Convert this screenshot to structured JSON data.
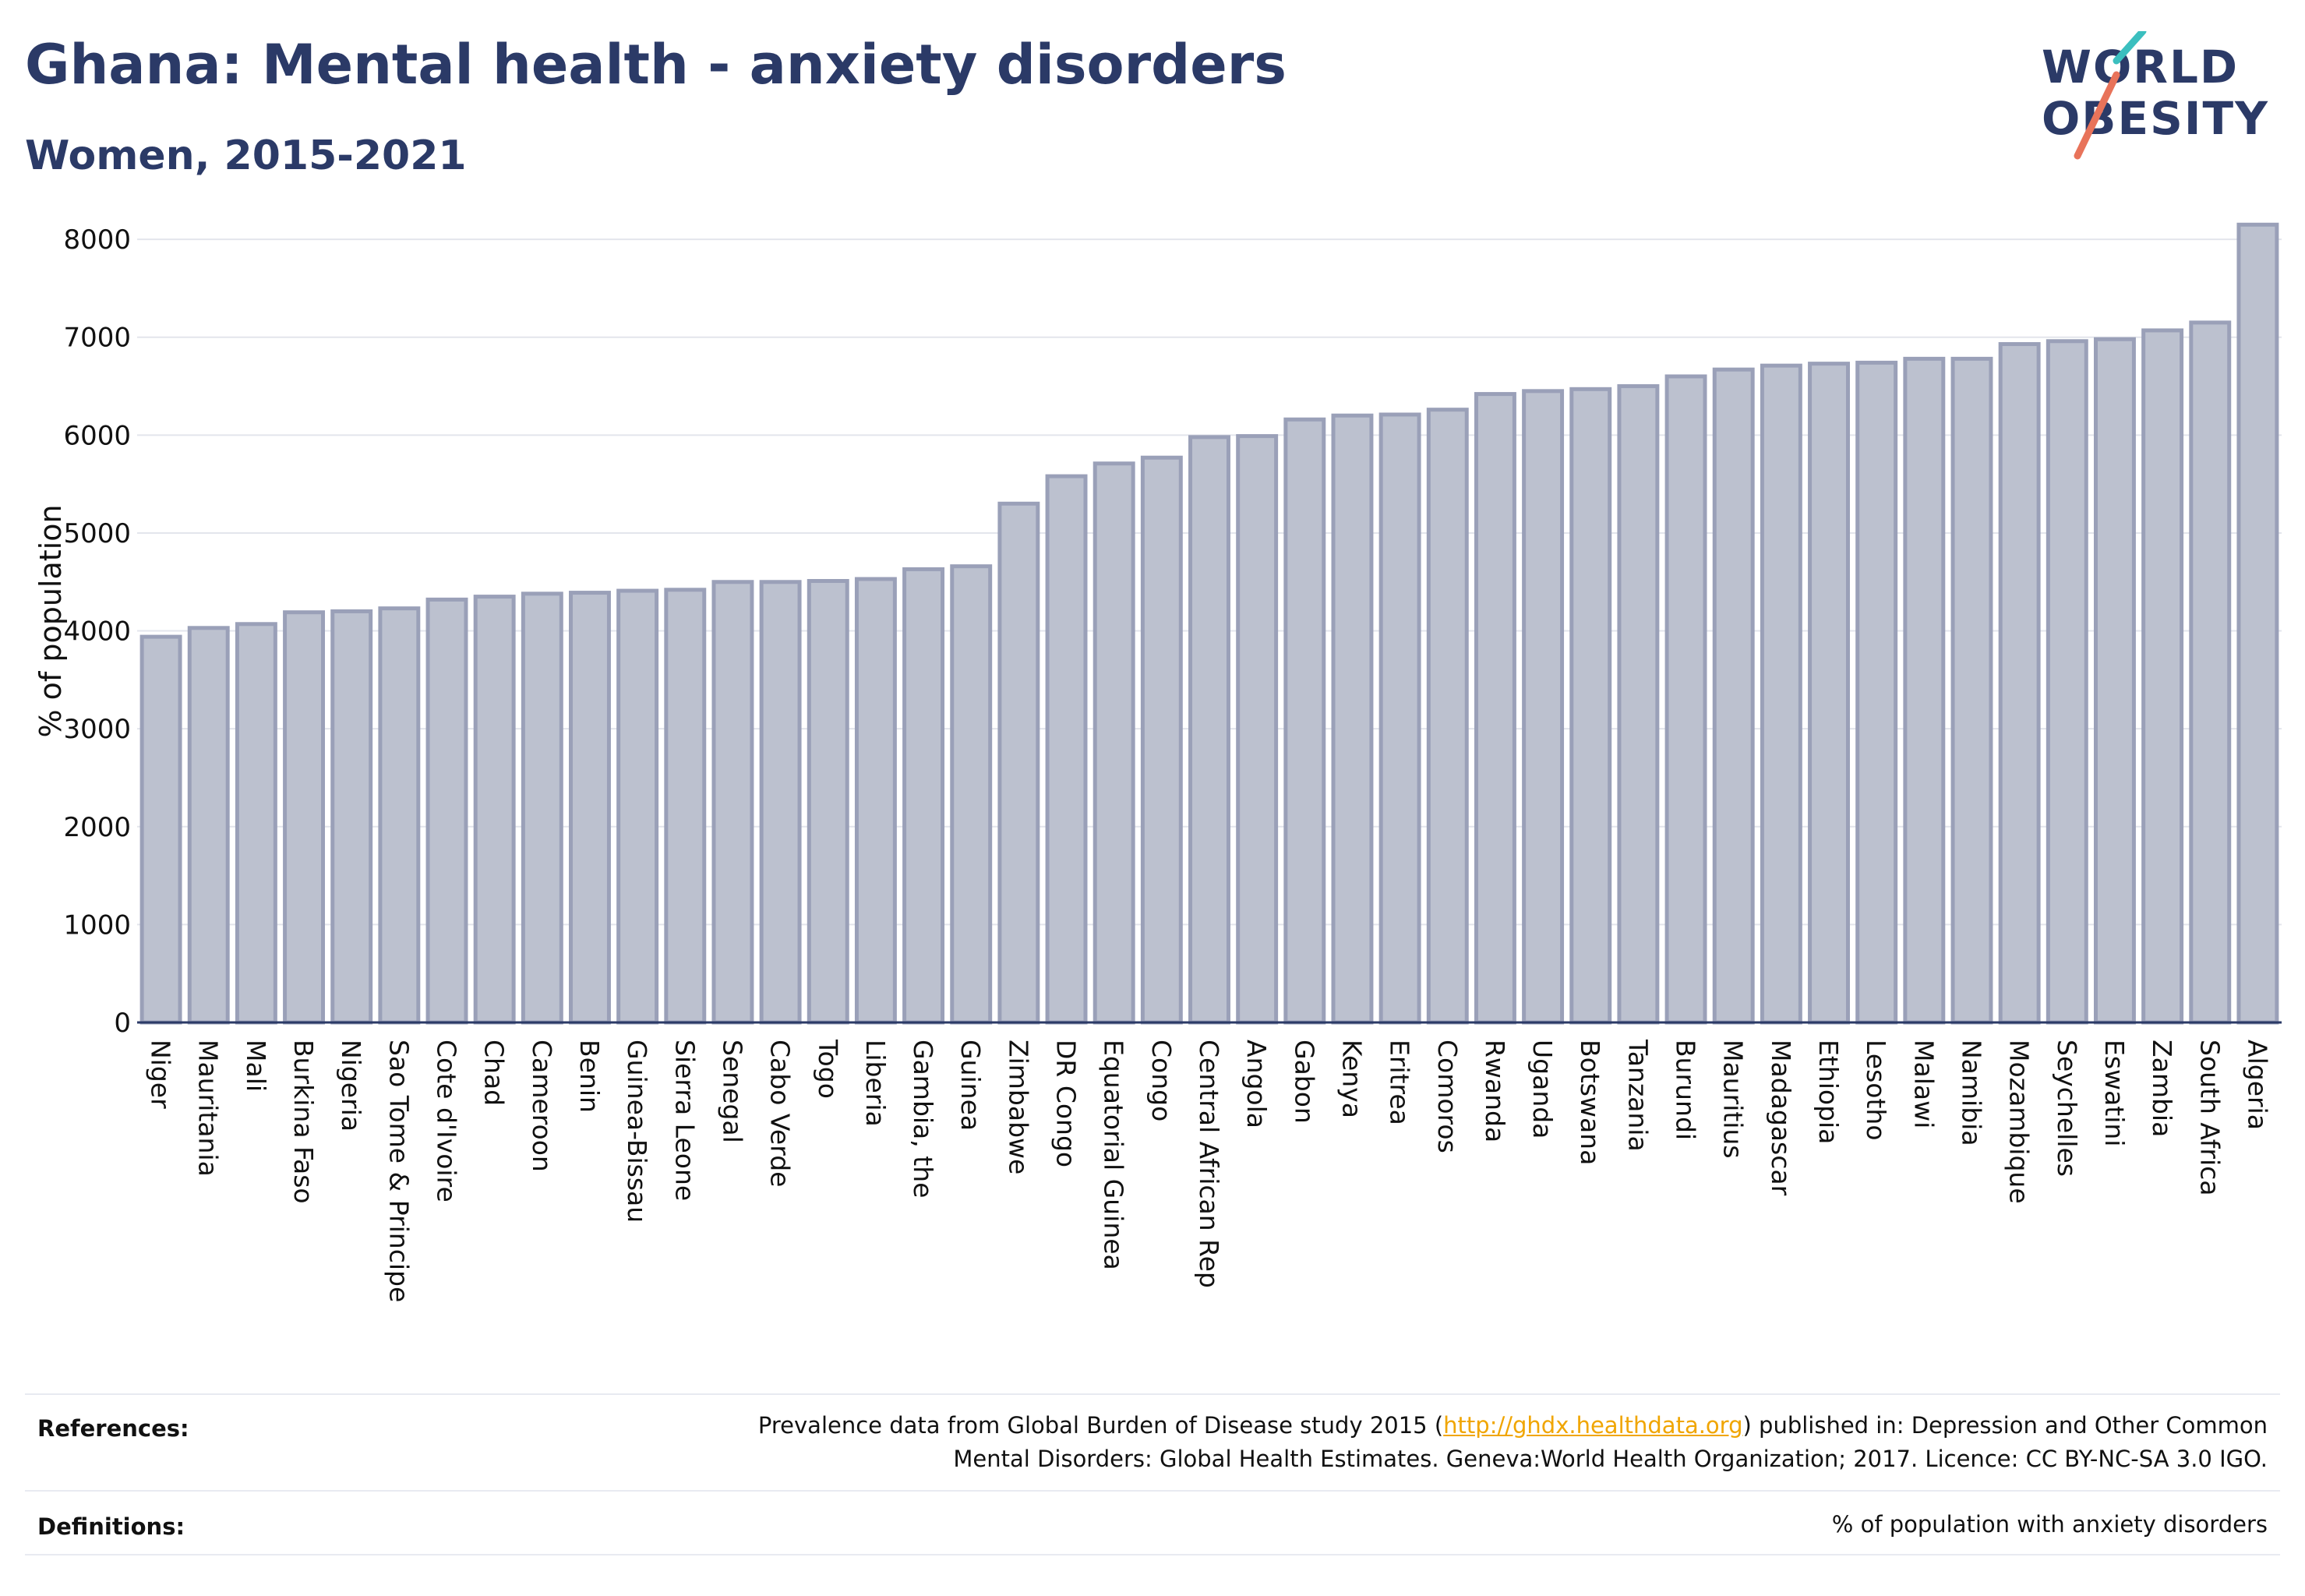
{
  "header": {
    "title": "Ghana: Mental health - anxiety disorders",
    "subtitle": "Women, 2015-2021"
  },
  "logo": {
    "line1": "WORLD",
    "line2": "OBESITY",
    "accent_colors": [
      "#3bbfbf",
      "#e8735a"
    ]
  },
  "colors": {
    "bar_fill": "#bcc1cf",
    "bar_stroke": "#9aa0b8",
    "title": "#2b3a67",
    "grid": "#e3e5ec",
    "link": "#f0a500"
  },
  "chart_data": {
    "type": "bar",
    "title": "Ghana: Mental health - anxiety disorders",
    "subtitle": "Women, 2015-2021",
    "xlabel": "",
    "ylabel": "% of population",
    "ylim": [
      0,
      8200
    ],
    "yticks": [
      0,
      1000,
      2000,
      3000,
      4000,
      5000,
      6000,
      7000,
      8000
    ],
    "grid": true,
    "categories": [
      "Niger",
      "Mauritania",
      "Mali",
      "Burkina Faso",
      "Nigeria",
      "Sao Tome & Principe",
      "Cote d'Ivoire",
      "Chad",
      "Cameroon",
      "Benin",
      "Guinea-Bissau",
      "Sierra Leone",
      "Senegal",
      "Cabo Verde",
      "Togo",
      "Liberia",
      "Gambia, the",
      "Guinea",
      "Zimbabwe",
      "DR Congo",
      "Equatorial Guinea",
      "Congo",
      "Central African Rep",
      "Angola",
      "Gabon",
      "Kenya",
      "Eritrea",
      "Comoros",
      "Rwanda",
      "Uganda",
      "Botswana",
      "Tanzania",
      "Burundi",
      "Mauritius",
      "Madagascar",
      "Ethiopia",
      "Lesotho",
      "Malawi",
      "Namibia",
      "Mozambique",
      "Seychelles",
      "Eswatini",
      "Zambia",
      "South Africa",
      "Algeria"
    ],
    "values": [
      3940,
      4030,
      4070,
      4190,
      4200,
      4230,
      4320,
      4350,
      4380,
      4390,
      4410,
      4420,
      4500,
      4500,
      4510,
      4530,
      4630,
      4660,
      5300,
      5580,
      5710,
      5770,
      5980,
      5990,
      6160,
      6200,
      6210,
      6260,
      6420,
      6450,
      6470,
      6500,
      6600,
      6670,
      6710,
      6730,
      6740,
      6780,
      6780,
      6930,
      6960,
      6980,
      7070,
      7150,
      8150
    ]
  },
  "footer": {
    "references_label": "References:",
    "references_text_1": "Prevalence data from Global Burden of Disease study 2015 (",
    "references_link": "http://ghdx.healthdata.org",
    "references_text_2": ") published in: Depression and Other Common",
    "references_text_3": "Mental Disorders: Global Health Estimates. Geneva:World Health Organization; 2017. Licence: CC BY-NC-SA 3.0 IGO.",
    "definitions_label": "Definitions:",
    "definitions_text": "% of population with anxiety disorders"
  }
}
